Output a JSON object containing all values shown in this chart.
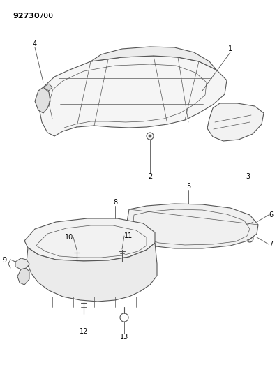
{
  "background_color": "#ffffff",
  "line_color": "#555555",
  "text_color": "#000000",
  "figsize": [
    3.97,
    5.33
  ],
  "dpi": 100,
  "title_bold": "92730",
  "title_normal": " 700"
}
